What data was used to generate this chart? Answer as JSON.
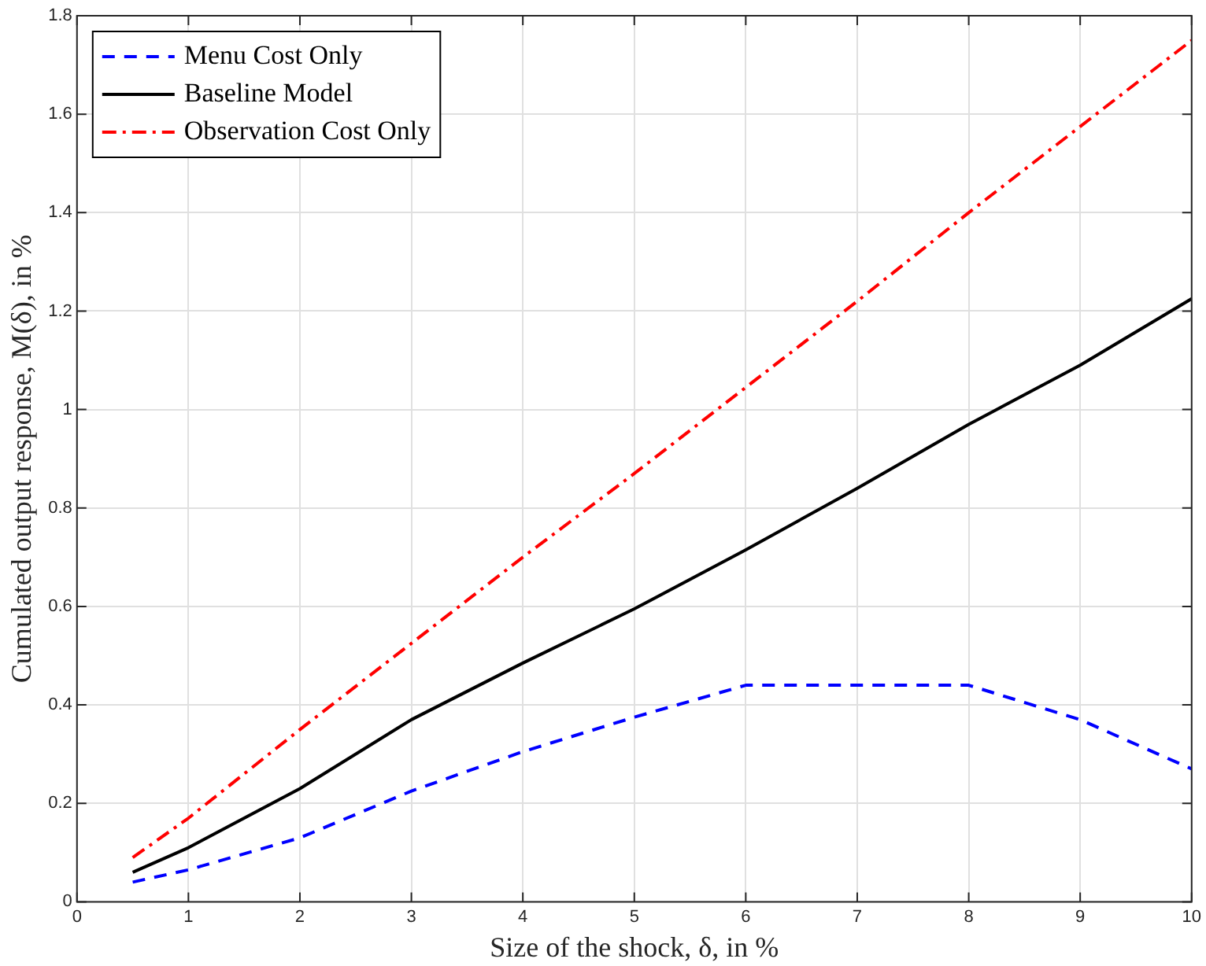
{
  "chart_data": {
    "type": "line",
    "xlabel": "Size of the shock, δ, in %",
    "ylabel": "Cumulated output response, M(δ), in %",
    "x": [
      0.5,
      1,
      2,
      3,
      4,
      5,
      6,
      7,
      8,
      9,
      10
    ],
    "series": [
      {
        "name": "Menu Cost Only",
        "color": "#0000ff",
        "line_style": "dashed",
        "values": [
          0.04,
          0.065,
          0.13,
          0.225,
          0.305,
          0.375,
          0.44,
          0.44,
          0.44,
          0.37,
          0.27
        ]
      },
      {
        "name": "Baseline Model",
        "color": "#000000",
        "line_style": "solid",
        "values": [
          0.06,
          0.11,
          0.23,
          0.37,
          0.485,
          0.595,
          0.715,
          0.84,
          0.97,
          1.09,
          1.225
        ]
      },
      {
        "name": "Observation Cost Only",
        "color": "#ff0000",
        "line_style": "dashdot",
        "values": [
          0.09,
          0.17,
          0.35,
          0.525,
          0.7,
          0.87,
          1.045,
          1.22,
          1.4,
          1.575,
          1.75
        ]
      }
    ],
    "xlim": [
      0,
      10
    ],
    "xticks": [
      0,
      1,
      2,
      3,
      4,
      5,
      6,
      7,
      8,
      9,
      10
    ],
    "ylim": [
      0,
      1.8
    ],
    "yticks": [
      0,
      0.2,
      0.4,
      0.6,
      0.8,
      1,
      1.2,
      1.4,
      1.6,
      1.8
    ],
    "grid": true,
    "legend": "top left",
    "marker": "none"
  }
}
